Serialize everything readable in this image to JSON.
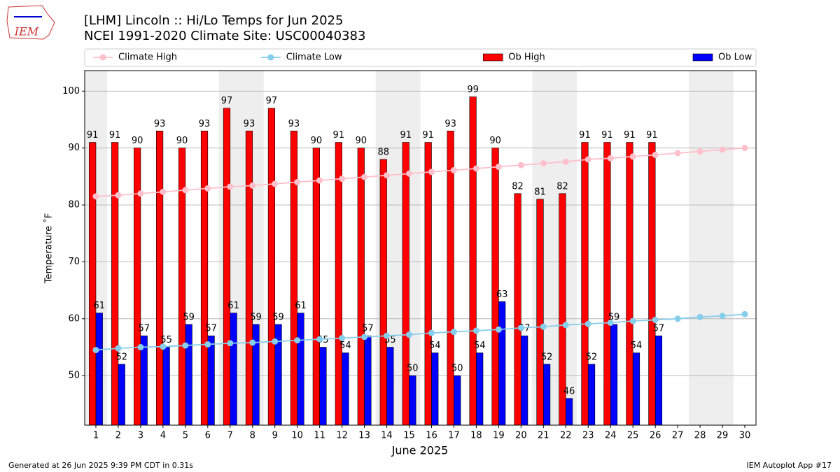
{
  "chart_data": {
    "type": "bar",
    "title": "[LHM] Lincoln :: Hi/Lo Temps for Jun 2025",
    "subtitle": "NCEI 1991-2020 Climate Site: USC00040383",
    "x_label": "June 2025",
    "y_label": "Temperature ˚F",
    "x": [
      1,
      2,
      3,
      4,
      5,
      6,
      7,
      8,
      9,
      10,
      11,
      12,
      13,
      14,
      15,
      16,
      17,
      18,
      19,
      20,
      21,
      22,
      23,
      24,
      25,
      26,
      27,
      28,
      29,
      30
    ],
    "xlim": [
      0.5,
      30.5
    ],
    "xticks": [
      1,
      2,
      3,
      4,
      5,
      6,
      7,
      8,
      9,
      10,
      11,
      12,
      13,
      14,
      15,
      16,
      17,
      18,
      19,
      20,
      21,
      22,
      23,
      24,
      25,
      26,
      27,
      28,
      29,
      30
    ],
    "ylim": [
      41.3,
      103.6
    ],
    "yticks": [
      50,
      60,
      70,
      80,
      90,
      100
    ],
    "grid": true,
    "shaded_ranges": [
      [
        0.5,
        1.5
      ],
      [
        6.5,
        8.5
      ],
      [
        13.5,
        15.5
      ],
      [
        20.5,
        22.5
      ],
      [
        27.5,
        29.5
      ]
    ],
    "shade_color": "#eeeeee",
    "series": [
      {
        "name": "Climate High",
        "type": "line",
        "color": "#ffc0cb",
        "values": [
          81.5,
          81.7,
          82.0,
          82.3,
          82.6,
          82.9,
          83.2,
          83.4,
          83.7,
          84.0,
          84.3,
          84.6,
          84.9,
          85.2,
          85.5,
          85.8,
          86.1,
          86.4,
          86.7,
          87.0,
          87.3,
          87.6,
          88.0,
          88.2,
          88.5,
          88.8,
          89.1,
          89.4,
          89.7,
          90.0
        ]
      },
      {
        "name": "Climate Low",
        "type": "line",
        "color": "#87ceeb",
        "values": [
          54.5,
          54.8,
          55.0,
          55.1,
          55.3,
          55.5,
          55.7,
          55.8,
          56.0,
          56.2,
          56.4,
          56.6,
          56.8,
          57.0,
          57.2,
          57.5,
          57.7,
          57.9,
          58.1,
          58.4,
          58.6,
          58.9,
          59.1,
          59.3,
          59.6,
          59.8,
          60.0,
          60.3,
          60.5,
          60.8
        ]
      },
      {
        "name": "Ob High",
        "type": "bar",
        "color": "#ff0000",
        "values": [
          91,
          91,
          90,
          93,
          90,
          93,
          97,
          93,
          97,
          93,
          90,
          91,
          90,
          88,
          91,
          91,
          93,
          99,
          90,
          82,
          81,
          82,
          91,
          91,
          91,
          91,
          null,
          null,
          null,
          null
        ]
      },
      {
        "name": "Ob Low",
        "type": "bar",
        "color": "#0000ff",
        "values": [
          61,
          52,
          57,
          55,
          59,
          57,
          61,
          59,
          59,
          61,
          55,
          54,
          57,
          55,
          50,
          54,
          50,
          54,
          63,
          57,
          52,
          46,
          52,
          59,
          54,
          57,
          null,
          null,
          null,
          null
        ]
      }
    ]
  },
  "footer": {
    "left": "Generated at 26 Jun 2025 9:39 PM CDT in 0.31s",
    "right": "IEM Autoplot App #17",
    "logo": "IEM"
  }
}
